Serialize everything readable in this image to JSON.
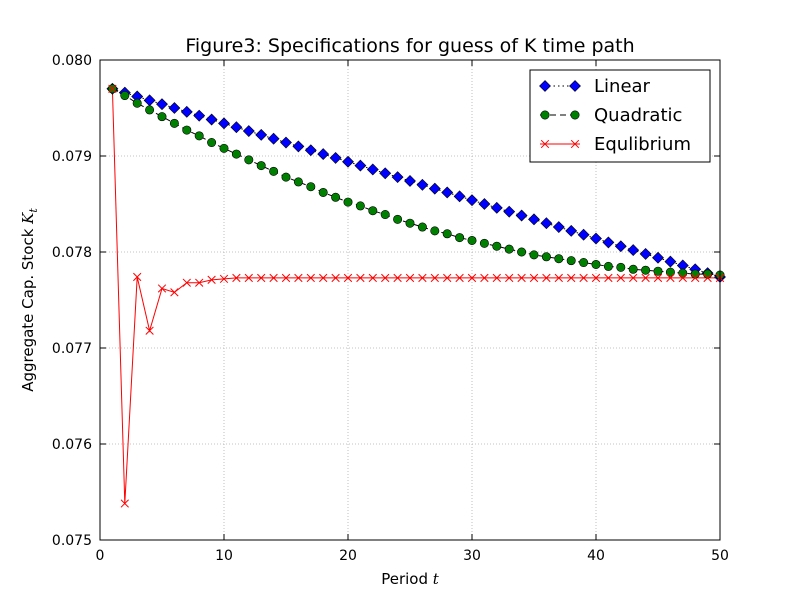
{
  "chart_data": {
    "type": "line",
    "title": "Figure3: Specifications for guess of K time path",
    "xlabel_text": "Period ",
    "xlabel_symbol": "t",
    "ylabel_text": "Aggregate Cap. Stock ",
    "ylabel_symbol": "K",
    "ylabel_subscript": "t",
    "xlim": [
      0,
      50
    ],
    "ylim": [
      0.075,
      0.08
    ],
    "xticks": [
      0,
      10,
      20,
      30,
      40,
      50
    ],
    "xtick_labels": [
      "0",
      "10",
      "20",
      "30",
      "40",
      "50"
    ],
    "yticks": [
      0.075,
      0.076,
      0.077,
      0.078,
      0.079,
      0.08
    ],
    "ytick_labels": [
      "0.075",
      "0.076",
      "0.077",
      "0.078",
      "0.079",
      "0.080"
    ],
    "grid": true,
    "legend_position": "top-right",
    "x": [
      1,
      2,
      3,
      4,
      5,
      6,
      7,
      8,
      9,
      10,
      11,
      12,
      13,
      14,
      15,
      16,
      17,
      18,
      19,
      20,
      21,
      22,
      23,
      24,
      25,
      26,
      27,
      28,
      29,
      30,
      31,
      32,
      33,
      34,
      35,
      36,
      37,
      38,
      39,
      40,
      41,
      42,
      43,
      44,
      45,
      46,
      47,
      48,
      49,
      50
    ],
    "series": [
      {
        "name": "Linear",
        "color": "#0000ff",
        "marker": "diamond",
        "linestyle": "dotted",
        "values": [
          0.0797,
          0.07966,
          0.07962,
          0.07958,
          0.07954,
          0.0795,
          0.07946,
          0.07942,
          0.07938,
          0.07934,
          0.0793,
          0.07926,
          0.07922,
          0.07918,
          0.07914,
          0.0791,
          0.07906,
          0.07902,
          0.07898,
          0.07894,
          0.0789,
          0.07886,
          0.07882,
          0.07878,
          0.07874,
          0.0787,
          0.07866,
          0.07862,
          0.07858,
          0.07854,
          0.0785,
          0.07846,
          0.07842,
          0.07838,
          0.07834,
          0.0783,
          0.07826,
          0.07822,
          0.07818,
          0.07814,
          0.0781,
          0.07806,
          0.07802,
          0.07798,
          0.07794,
          0.0779,
          0.07786,
          0.07782,
          0.07778,
          0.07774
        ]
      },
      {
        "name": "Quadratic",
        "color": "#008000",
        "marker": "circle",
        "linestyle": "dashed",
        "values": [
          0.0797,
          0.07963,
          0.07955,
          0.07948,
          0.07941,
          0.07934,
          0.07927,
          0.07921,
          0.07914,
          0.07908,
          0.07902,
          0.07896,
          0.0789,
          0.07884,
          0.07878,
          0.07873,
          0.07868,
          0.07862,
          0.07857,
          0.07852,
          0.07848,
          0.07843,
          0.07839,
          0.07834,
          0.0783,
          0.07826,
          0.07822,
          0.07819,
          0.07815,
          0.07812,
          0.07809,
          0.07806,
          0.07803,
          0.078,
          0.07797,
          0.07795,
          0.07793,
          0.07791,
          0.07789,
          0.07787,
          0.07785,
          0.07784,
          0.07782,
          0.07781,
          0.0778,
          0.07779,
          0.07778,
          0.07777,
          0.07777,
          0.07776
        ]
      },
      {
        "name": "Equlibrium",
        "color": "#ff0000",
        "marker": "x",
        "linestyle": "solid",
        "values": [
          0.0797,
          0.07538,
          0.07774,
          0.07718,
          0.07762,
          0.07758,
          0.07768,
          0.07768,
          0.07771,
          0.07772,
          0.07773,
          0.07773,
          0.07773,
          0.07773,
          0.07773,
          0.07773,
          0.07773,
          0.07773,
          0.07773,
          0.07773,
          0.07773,
          0.07773,
          0.07773,
          0.07773,
          0.07773,
          0.07773,
          0.07773,
          0.07773,
          0.07773,
          0.07773,
          0.07773,
          0.07773,
          0.07773,
          0.07773,
          0.07773,
          0.07773,
          0.07773,
          0.07773,
          0.07773,
          0.07773,
          0.07773,
          0.07773,
          0.07773,
          0.07773,
          0.07773,
          0.07773,
          0.07773,
          0.07773,
          0.07773,
          0.07773
        ]
      }
    ]
  }
}
